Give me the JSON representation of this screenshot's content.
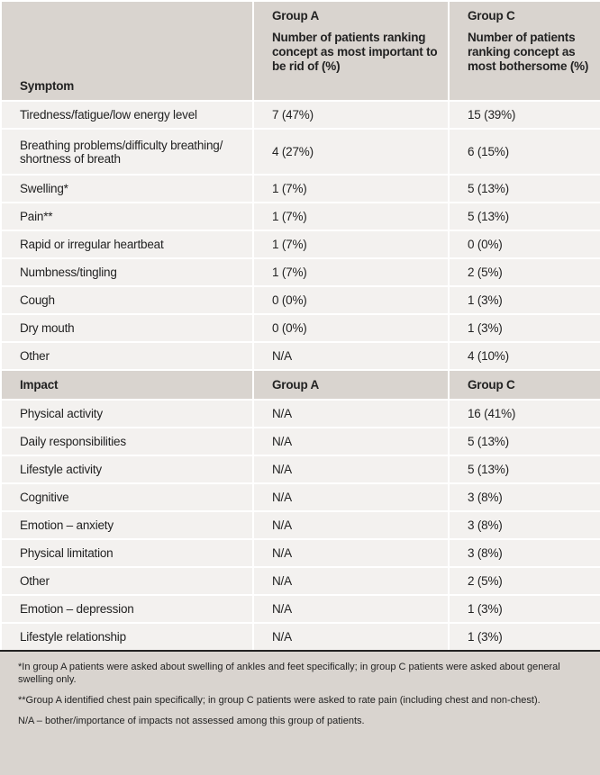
{
  "symptom_header": {
    "label": "Symptom",
    "group_a": "Group A",
    "group_a_desc": "Number of patients ranking concept as most important to be rid of (%)",
    "group_c": "Group C",
    "group_c_desc": "Number of patients ranking concept as most bothersome (%)"
  },
  "symptom_rows": [
    [
      "Tiredness/fatigue/low energy level",
      "7 (47%)",
      "15 (39%)"
    ],
    [
      "Breathing problems/difficulty breathing/ shortness of breath",
      "4 (27%)",
      "6 (15%)"
    ],
    [
      "Swelling*",
      "1 (7%)",
      "5 (13%)"
    ],
    [
      "Pain**",
      "1 (7%)",
      "5 (13%)"
    ],
    [
      "Rapid or irregular heartbeat",
      "1 (7%)",
      "0 (0%)"
    ],
    [
      "Numbness/tingling",
      "1 (7%)",
      "2 (5%)"
    ],
    [
      "Cough",
      "0 (0%)",
      "1 (3%)"
    ],
    [
      "Dry mouth",
      "0 (0%)",
      "1 (3%)"
    ],
    [
      "Other",
      "N/A",
      "4 (10%)"
    ]
  ],
  "impact_header": [
    "Impact",
    "Group A",
    "Group C"
  ],
  "impact_rows": [
    [
      "Physical activity",
      "N/A",
      "16 (41%)"
    ],
    [
      "Daily responsibilities",
      "N/A",
      "5 (13%)"
    ],
    [
      "Lifestyle activity",
      "N/A",
      "5 (13%)"
    ],
    [
      "Cognitive",
      "N/A",
      "3 (8%)"
    ],
    [
      "Emotion – anxiety",
      "N/A",
      "3 (8%)"
    ],
    [
      "Physical limitation",
      "N/A",
      "3 (8%)"
    ],
    [
      "Other",
      "N/A",
      "2 (5%)"
    ],
    [
      "Emotion – depression",
      "N/A",
      "1 (3%)"
    ],
    [
      "Lifestyle relationship",
      "N/A",
      "1 (3%)"
    ]
  ],
  "footnotes": [
    "*In group A patients were asked about swelling of ankles and feet specifically; in group C patients were asked about general swelling only.",
    "**Group A identified chest pain specifically; in group C patients were asked to rate pain (including chest and non-chest).",
    "N/A – bother/importance of impacts not assessed among this group of patients."
  ]
}
